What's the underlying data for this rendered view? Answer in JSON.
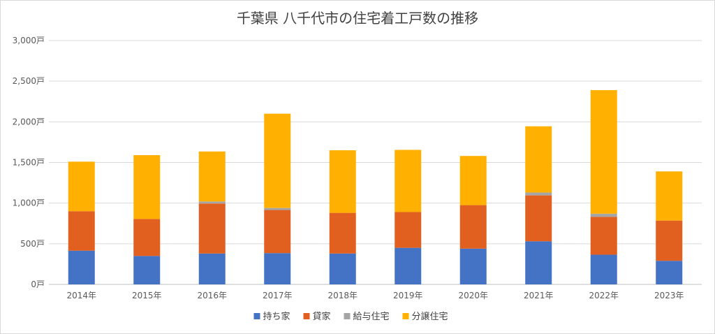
{
  "chart_data": {
    "type": "bar",
    "stacked": true,
    "title": "千葉県 八千代市の住宅着工戸数の推移",
    "xlabel": "",
    "ylabel": "",
    "categories": [
      "2014年",
      "2015年",
      "2016年",
      "2017年",
      "2018年",
      "2019年",
      "2020年",
      "2021年",
      "2022年",
      "2023年"
    ],
    "series": [
      {
        "name": "持ち家",
        "color": "#4472c4",
        "values": [
          415,
          350,
          380,
          385,
          380,
          450,
          440,
          530,
          365,
          290
        ]
      },
      {
        "name": "貸家",
        "color": "#e2601f",
        "values": [
          485,
          455,
          615,
          530,
          500,
          440,
          535,
          565,
          465,
          495
        ]
      },
      {
        "name": "給与住宅",
        "color": "#a5a5a5",
        "values": [
          0,
          0,
          25,
          25,
          0,
          0,
          0,
          35,
          40,
          0
        ]
      },
      {
        "name": "分譲住宅",
        "color": "#ffb000",
        "values": [
          610,
          785,
          615,
          1160,
          770,
          765,
          605,
          815,
          1520,
          605
        ]
      }
    ],
    "ylim": [
      0,
      3000
    ],
    "yticks": [
      0,
      500,
      1000,
      1500,
      2000,
      2500,
      3000
    ],
    "ytick_labels": [
      "0戸",
      "500戸",
      "1,000戸",
      "1,500戸",
      "2,000戸",
      "2,500戸",
      "3,000戸"
    ],
    "grid": true,
    "legend_position": "bottom"
  }
}
